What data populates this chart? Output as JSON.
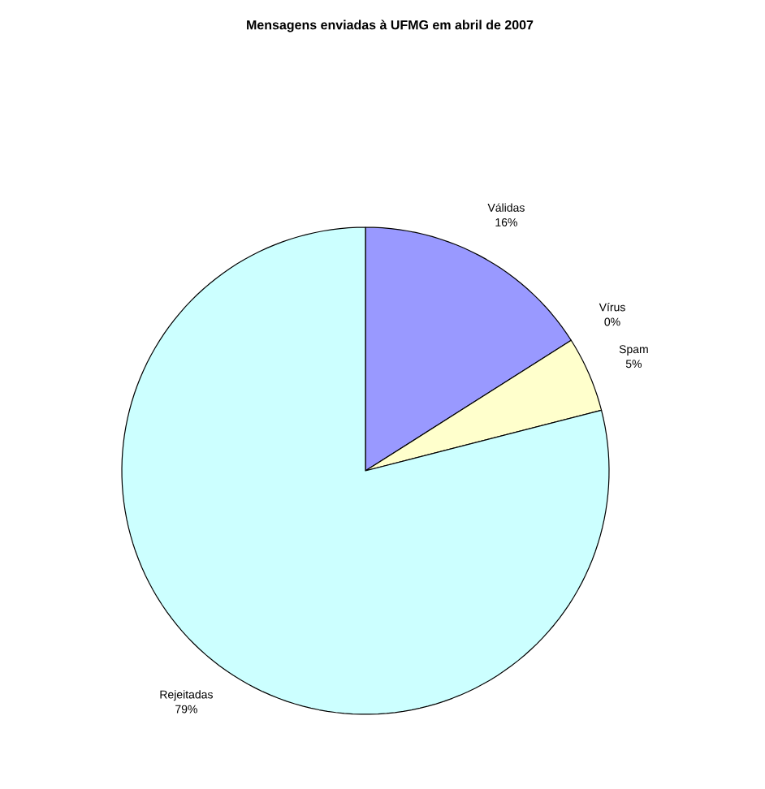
{
  "chart_data": {
    "type": "pie",
    "title": "Mensagens enviadas à UFMG em abril de 2007",
    "categories": [
      "Válidas",
      "Vírus",
      "Spam",
      "Rejeitadas"
    ],
    "values": [
      16,
      0,
      5,
      79
    ],
    "value_labels": [
      "16%",
      "0%",
      "5%",
      "79%"
    ],
    "colors": [
      "#9999ff",
      "#993366",
      "#ffffcc",
      "#ccffff"
    ]
  }
}
